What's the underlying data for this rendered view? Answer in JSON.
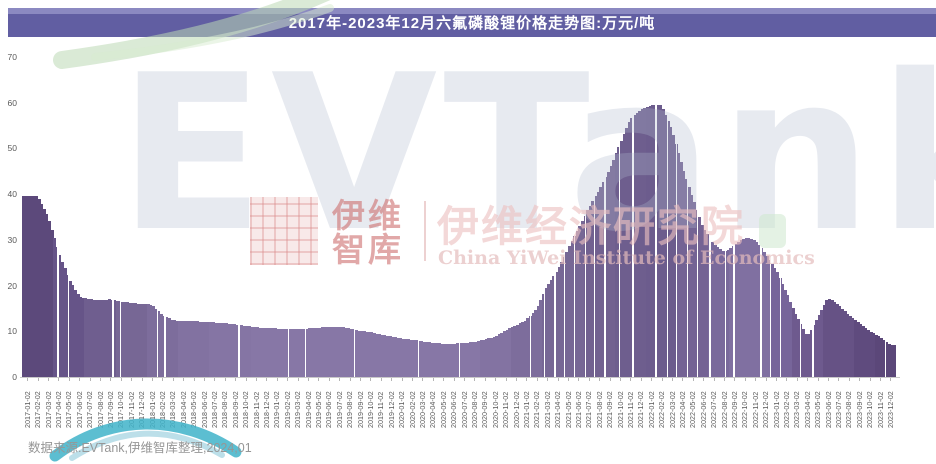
{
  "title": "2017年-2023年12月六氟磷酸锂价格走势图:万元/吨",
  "source_note": "数据来源:EVTank,伊维智库整理,2024,01",
  "watermark": {
    "big_brand": "EVTank",
    "logo_text_line1": "伊维",
    "logo_text_line2": "智库",
    "institute_cn": "伊维经济研究院",
    "institute_en": "China YiWei Institute of Economics"
  },
  "colors": {
    "banner_bg": "#615ea2",
    "banner_highlight": "#8b89c1",
    "title_text": "#ffffff",
    "axis_line": "#c9c9c9",
    "tick_label": "#595959",
    "source_text": "#969696",
    "watermark_red": "#cd6e6e",
    "watermark_pink": "#ebc0c0",
    "watermark_gray_blue": "#b0bace",
    "swoosh_green": "#bcd9b4",
    "swoosh_teal": "#3fb3c9",
    "swoosh_light_blue": "#b5dbe7"
  },
  "chart_data": {
    "type": "bar",
    "title": "2017年-2023年12月六氟磷酸锂价格走势图:万元/吨",
    "unit": "万元/吨",
    "xlabel": "",
    "ylabel": "",
    "ylim": [
      0,
      70
    ],
    "yticks": [
      0,
      10,
      20,
      30,
      40,
      50,
      60,
      70
    ],
    "grid": "off",
    "legend": "none",
    "categories": [
      "2017-01-02",
      "2017-02-02",
      "2017-03-02",
      "2017-04-02",
      "2017-05-02",
      "2017-06-02",
      "2017-07-02",
      "2017-08-02",
      "2017-09-02",
      "2017-10-02",
      "2017-11-02",
      "2017-12-02",
      "2018-01-02",
      "2018-02-02",
      "2018-03-02",
      "2018-04-02",
      "2018-05-02",
      "2018-06-02",
      "2018-07-02",
      "2018-08-02",
      "2018-09-02",
      "2018-10-02",
      "2018-11-02",
      "2018-12-02",
      "2019-01-02",
      "2019-02-02",
      "2019-03-02",
      "2019-04-02",
      "2019-05-02",
      "2019-06-02",
      "2019-07-02",
      "2019-08-02",
      "2019-09-02",
      "2019-10-02",
      "2019-11-02",
      "2019-12-02",
      "2020-01-02",
      "2020-02-02",
      "2020-03-02",
      "2020-04-02",
      "2020-05-02",
      "2020-06-02",
      "2020-07-02",
      "2020-08-02",
      "2020-09-02",
      "2020-10-02",
      "2020-11-02",
      "2020-12-02",
      "2021-01-02",
      "2021-02-02",
      "2021-03-02",
      "2021-04-02",
      "2021-05-02",
      "2021-06-02",
      "2021-07-02",
      "2021-08-02",
      "2021-09-02",
      "2021-10-02",
      "2021-11-02",
      "2021-12-02",
      "2022-01-02",
      "2022-02-02",
      "2022-03-02",
      "2022-04-02",
      "2022-05-02",
      "2022-06-02",
      "2022-07-02",
      "2022-08-02",
      "2022-09-02",
      "2022-10-02",
      "2022-11-02",
      "2022-12-02",
      "2023-01-02",
      "2023-02-02",
      "2023-03-02",
      "2023-04-02",
      "2023-05-02",
      "2023-06-02",
      "2023-07-02",
      "2023-08-02",
      "2023-09-02",
      "2023-10-02",
      "2023-11-02",
      "2023-12-02"
    ],
    "values": [
      39.5,
      39.5,
      35.0,
      27.5,
      21.5,
      17.6,
      17.0,
      16.8,
      17.0,
      16.5,
      16.2,
      16.0,
      15.8,
      13.5,
      12.4,
      12.2,
      12.2,
      12.1,
      11.9,
      11.8,
      11.5,
      11.2,
      10.9,
      10.7,
      10.6,
      10.5,
      10.5,
      10.6,
      10.8,
      11.0,
      11.0,
      10.6,
      10.1,
      9.8,
      9.3,
      8.8,
      8.4,
      8.1,
      7.8,
      7.5,
      7.3,
      7.3,
      7.4,
      7.7,
      8.2,
      8.8,
      10.2,
      11.3,
      12.5,
      15.0,
      20.0,
      23.5,
      28.0,
      32.5,
      37.0,
      41.0,
      45.5,
      51.0,
      56.5,
      58.5,
      59.4,
      59.4,
      54.0,
      46.0,
      39.0,
      32.5,
      29.0,
      27.3,
      28.8,
      30.5,
      30.0,
      27.0,
      23.5,
      18.5,
      13.2,
      8.8,
      13.0,
      17.3,
      15.8,
      13.6,
      11.8,
      10.0,
      8.8,
      7.0
    ],
    "bar_color_segments": [
      [
        0,
        "#5c497b"
      ],
      [
        3,
        "#665488"
      ],
      [
        6,
        "#6f5e8f"
      ],
      [
        9,
        "#776795"
      ],
      [
        12,
        "#7d6d9c"
      ],
      [
        15,
        "#8272a1"
      ],
      [
        18,
        "#8575a4"
      ],
      [
        22,
        "#8777a6"
      ],
      [
        44,
        "#8373a2"
      ],
      [
        47,
        "#7d6d9c"
      ],
      [
        50,
        "#776795"
      ],
      [
        54,
        "#726190"
      ],
      [
        57,
        "#6e5e8e"
      ],
      [
        60,
        "#6c5c8d"
      ],
      [
        63,
        "#746394"
      ],
      [
        66,
        "#7a6a9c"
      ],
      [
        68,
        "#8070a1"
      ],
      [
        72,
        "#77659a"
      ],
      [
        74,
        "#6e5a8e"
      ],
      [
        77,
        "#665285"
      ],
      [
        80,
        "#5f4b7e"
      ],
      [
        82,
        "#5b4779"
      ]
    ],
    "white_separators_month_pos": [
      3.4,
      4.4,
      8.7,
      9.4,
      13.0,
      13.7,
      20.8,
      25.6,
      27.2,
      31.9,
      38.1,
      42.0,
      48.8,
      50.2,
      51.2,
      52.1,
      53.1,
      54.1,
      55.0,
      56.0,
      57.4,
      58.7,
      60.9,
      62.0,
      62.9,
      63.9,
      64.9,
      66.1,
      67.6,
      68.4,
      71.0,
      71.9,
      72.9,
      74.8,
      76.0,
      83.0
    ]
  }
}
